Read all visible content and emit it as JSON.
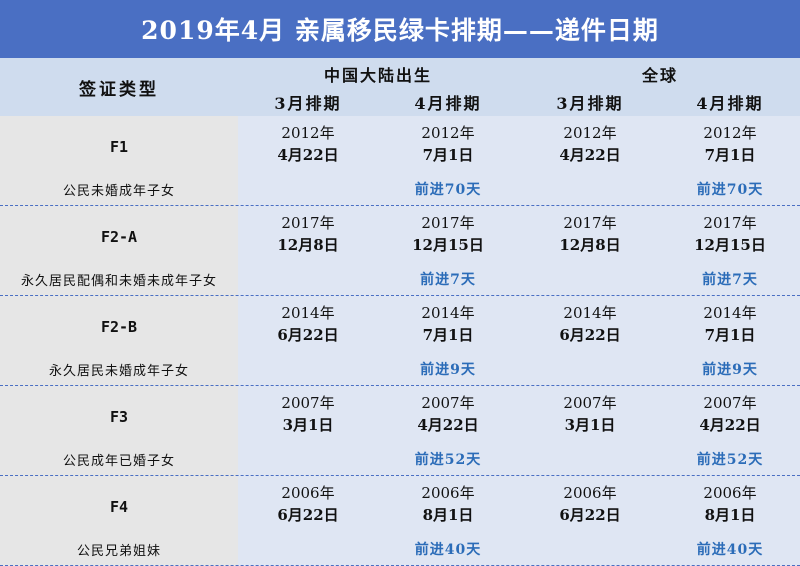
{
  "title": "2019年4月 亲属移民绿卡排期——递件日期",
  "header": {
    "visa_type": "签证类型",
    "groups": [
      "中国大陆出生",
      "全球"
    ],
    "months": [
      "3月排期",
      "4月排期",
      "3月排期",
      "4月排期"
    ]
  },
  "rows": [
    {
      "code": "F1",
      "desc": "公民未婚成年子女",
      "cells": [
        {
          "year": "2012年",
          "date": "4月22日"
        },
        {
          "year": "2012年",
          "date": "7月1日"
        },
        {
          "year": "2012年",
          "date": "4月22日"
        },
        {
          "year": "2012年",
          "date": "7月1日"
        }
      ],
      "advance": [
        "前进70天",
        "前进70天"
      ]
    },
    {
      "code": "F2-A",
      "desc": "永久居民配偶和未婚未成年子女",
      "cells": [
        {
          "year": "2017年",
          "date": "12月8日"
        },
        {
          "year": "2017年",
          "date": "12月15日"
        },
        {
          "year": "2017年",
          "date": "12月8日"
        },
        {
          "year": "2017年",
          "date": "12月15日"
        }
      ],
      "advance": [
        "前进7天",
        "前进7天"
      ]
    },
    {
      "code": "F2-B",
      "desc": "永久居民未婚成年子女",
      "cells": [
        {
          "year": "2014年",
          "date": "6月22日"
        },
        {
          "year": "2014年",
          "date": "7月1日"
        },
        {
          "year": "2014年",
          "date": "6月22日"
        },
        {
          "year": "2014年",
          "date": "7月1日"
        }
      ],
      "advance": [
        "前进9天",
        "前进9天"
      ]
    },
    {
      "code": "F3",
      "desc": "公民成年已婚子女",
      "cells": [
        {
          "year": "2007年",
          "date": "3月1日"
        },
        {
          "year": "2007年",
          "date": "4月22日"
        },
        {
          "year": "2007年",
          "date": "3月1日"
        },
        {
          "year": "2007年",
          "date": "4月22日"
        }
      ],
      "advance": [
        "前进52天",
        "前进52天"
      ]
    },
    {
      "code": "F4",
      "desc": "公民兄弟姐妹",
      "cells": [
        {
          "year": "2006年",
          "date": "6月22日"
        },
        {
          "year": "2006年",
          "date": "8月1日"
        },
        {
          "year": "2006年",
          "date": "6月22日"
        },
        {
          "year": "2006年",
          "date": "8月1日"
        }
      ],
      "advance": [
        "前进40天",
        "前进40天"
      ]
    }
  ]
}
